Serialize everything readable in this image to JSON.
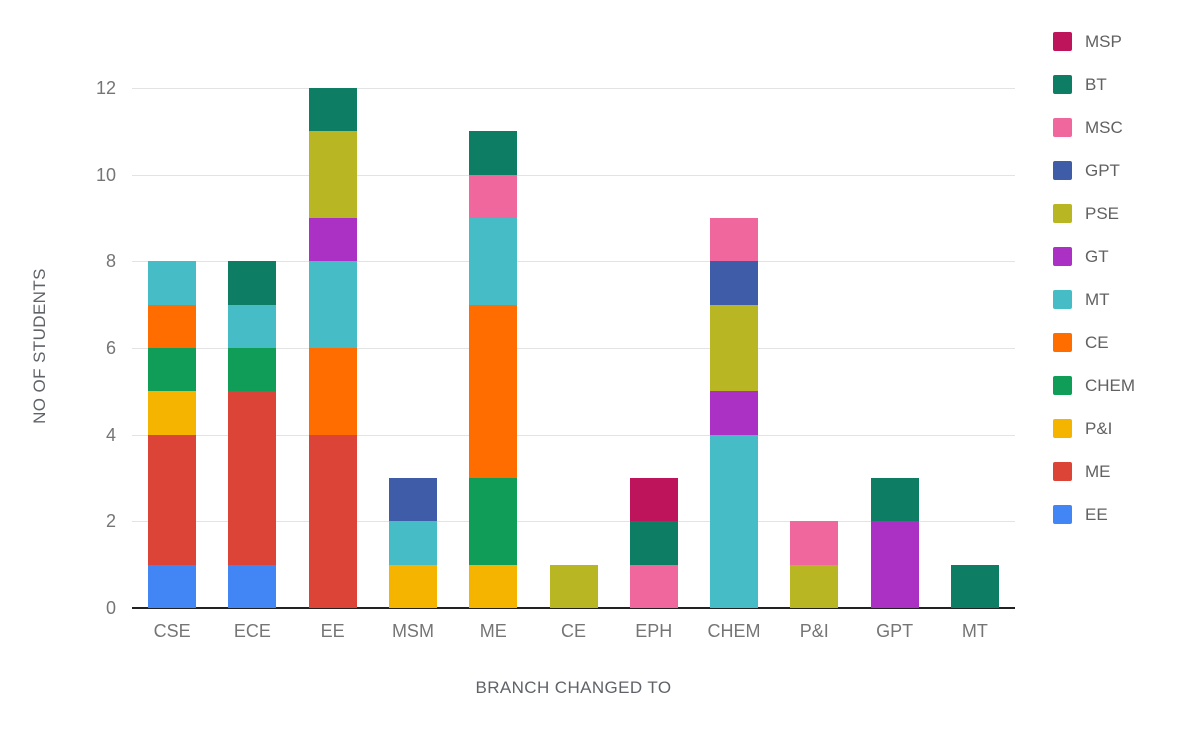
{
  "chart_data": {
    "type": "bar",
    "stacked": true,
    "title": "",
    "xlabel": "BRANCH CHANGED TO",
    "ylabel": "NO OF STUDENTS",
    "ylim": [
      0,
      12
    ],
    "yticks": [
      0,
      2,
      4,
      6,
      8,
      10,
      12
    ],
    "grid": true,
    "legend_position": "right",
    "categories": [
      "CSE",
      "ECE",
      "EE",
      "MSM",
      "ME",
      "CE",
      "EPH",
      "CHEM",
      "P&I",
      "GPT",
      "MT"
    ],
    "series": [
      {
        "name": "EE",
        "color": "#4285f4",
        "values": [
          1,
          1,
          0,
          0,
          0,
          0,
          0,
          0,
          0,
          0,
          0
        ]
      },
      {
        "name": "ME",
        "color": "#db4437",
        "values": [
          3,
          4,
          4,
          0,
          0,
          0,
          0,
          0,
          0,
          0,
          0
        ]
      },
      {
        "name": "P&I",
        "color": "#f4b400",
        "values": [
          1,
          0,
          0,
          1,
          1,
          0,
          0,
          0,
          0,
          0,
          0
        ]
      },
      {
        "name": "CHEM",
        "color": "#0f9d58",
        "values": [
          1,
          1,
          0,
          0,
          2,
          0,
          0,
          0,
          0,
          0,
          0
        ]
      },
      {
        "name": "CE",
        "color": "#ff6d01",
        "values": [
          1,
          0,
          2,
          0,
          4,
          0,
          0,
          0,
          0,
          0,
          0
        ]
      },
      {
        "name": "MT",
        "color": "#46bdc6",
        "values": [
          1,
          1,
          2,
          1,
          2,
          0,
          0,
          4,
          0,
          0,
          0
        ]
      },
      {
        "name": "GT",
        "color": "#ab30c4",
        "values": [
          0,
          0,
          1,
          0,
          0,
          0,
          0,
          1,
          0,
          2,
          0
        ]
      },
      {
        "name": "PSE",
        "color": "#b8b622",
        "values": [
          0,
          0,
          2,
          0,
          0,
          1,
          0,
          2,
          1,
          0,
          0
        ]
      },
      {
        "name": "GPT",
        "color": "#3f5ca8",
        "values": [
          0,
          0,
          0,
          1,
          0,
          0,
          0,
          1,
          0,
          0,
          0
        ]
      },
      {
        "name": "MSC",
        "color": "#f0679e",
        "values": [
          0,
          0,
          0,
          0,
          1,
          0,
          1,
          1,
          1,
          0,
          0
        ]
      },
      {
        "name": "BT",
        "color": "#0d7e63",
        "values": [
          0,
          1,
          1,
          0,
          1,
          0,
          1,
          0,
          0,
          1,
          1
        ]
      },
      {
        "name": "MSP",
        "color": "#be145b",
        "values": [
          0,
          0,
          0,
          0,
          0,
          0,
          1,
          0,
          0,
          0,
          0
        ]
      }
    ],
    "legend_order": [
      "MSP",
      "BT",
      "MSC",
      "GPT",
      "PSE",
      "GT",
      "MT",
      "CE",
      "CHEM",
      "P&I",
      "ME",
      "EE"
    ]
  }
}
